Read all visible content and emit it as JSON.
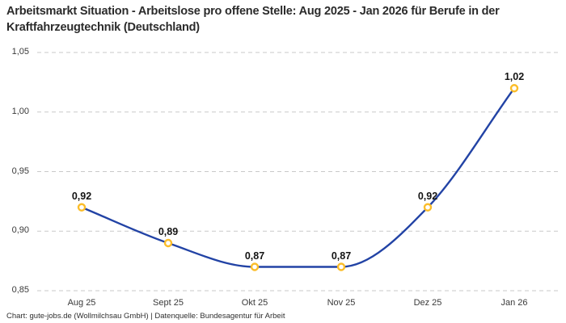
{
  "footer": {
    "credit": "Chart: gute-jobs.de (Wollmilchsau GmbH) | Datenquelle: Bundesagentur für Arbeit"
  },
  "colors": {
    "line": "#2243a5",
    "marker_stroke": "#fbbd2a",
    "marker_fill": "#ffffff",
    "gridline": "#c9c9c9",
    "title_text": "#2b2b2b",
    "axis_text": "#3a3a3a",
    "value_label_text": "#141414",
    "background": "#ffffff"
  },
  "chart_data": {
    "type": "line",
    "title": "Arbeitsmarkt Situation - Arbeitslose pro offene Stelle: Aug 2025 - Jan 2026 für Berufe in der Kraftfahrzeugtechnik (Deutschland)",
    "categories": [
      "Aug 25",
      "Sept 25",
      "Okt 25",
      "Nov 25",
      "Dez 25",
      "Jan 26"
    ],
    "values": [
      0.92,
      0.89,
      0.87,
      0.87,
      0.92,
      1.02
    ],
    "value_labels": [
      "0,92",
      "0,89",
      "0,87",
      "0,87",
      "0,92",
      "1,02"
    ],
    "y_ticks": [
      0.85,
      0.9,
      0.95,
      1.0,
      1.05
    ],
    "y_tick_labels": [
      "0,85",
      "0,90",
      "0,95",
      "1,00",
      "1,05"
    ],
    "ylim": [
      0.85,
      1.05
    ],
    "xlabel": "",
    "ylabel": "",
    "grid": "horizontal-dashed",
    "legend": "none",
    "curve": "monotone-smooth",
    "marker": "open-circle"
  }
}
